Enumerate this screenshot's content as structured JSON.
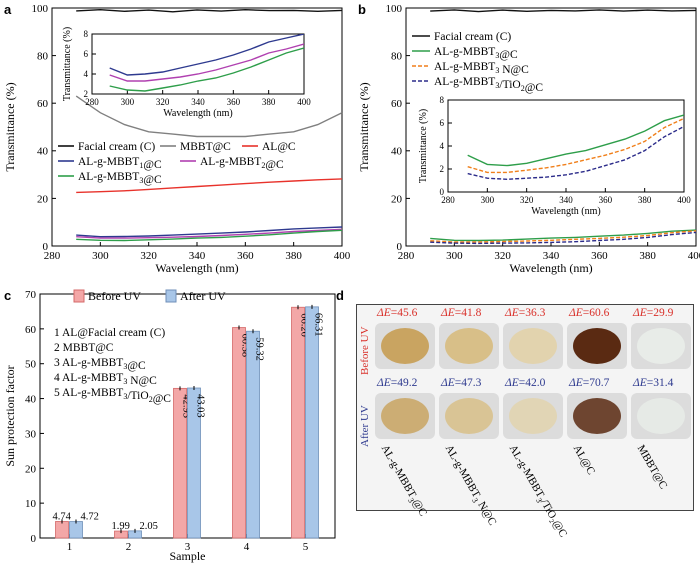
{
  "colors": {
    "black": "#111111",
    "grey": "#808080",
    "red": "#e8322b",
    "blue": "#2e3a8f",
    "purple": "#b040b0",
    "green": "#2e9e4a",
    "orange": "#f07f1a",
    "navy": "#2b2b8a",
    "bar_before": "#f3a7a7",
    "bar_after": "#a8c6e8",
    "de_before": "#d9302a",
    "de_after": "#2e3a8f"
  },
  "chart_data": [
    {
      "panel": "a",
      "type": "line",
      "xlabel": "Wavelength (nm)",
      "ylabel": "Transmittance (%)",
      "xlim": [
        280,
        400
      ],
      "ylim": [
        0,
        100
      ],
      "xticks": [
        "280",
        "300",
        "320",
        "340",
        "360",
        "380",
        "400"
      ],
      "yticks": [
        "0",
        "20",
        "40",
        "60",
        "80",
        "100"
      ],
      "legend": [
        "Facial cream (C)",
        "MBBT@C",
        "AL@C",
        "AL-g-MBBT1@C",
        "AL-g-MBBT2@C",
        "AL-g-MBBT3@C"
      ],
      "series": [
        {
          "name": "Facial cream (C)",
          "color": "black",
          "x": [
            290,
            300,
            310,
            320,
            330,
            340,
            350,
            360,
            370,
            380,
            390,
            400
          ],
          "y": [
            98.8,
            99.3,
            98.6,
            99.1,
            98.4,
            99.2,
            98.7,
            99.3,
            98.9,
            99.0,
            98.6,
            99.0
          ]
        },
        {
          "name": "MBBT@C",
          "color": "grey",
          "x": [
            290,
            300,
            310,
            320,
            330,
            340,
            350,
            360,
            370,
            380,
            390,
            400
          ],
          "y": [
            63,
            56,
            51,
            48,
            47,
            46,
            46,
            46,
            47,
            48,
            51,
            56
          ]
        },
        {
          "name": "AL@C",
          "color": "red",
          "x": [
            290,
            300,
            310,
            320,
            330,
            340,
            350,
            360,
            370,
            380,
            390,
            400
          ],
          "y": [
            22.5,
            22.8,
            23.2,
            23.8,
            24.4,
            25.0,
            25.6,
            26.2,
            26.8,
            27.3,
            27.8,
            28.2
          ]
        },
        {
          "name": "AL-g-MBBT1@C",
          "color": "blue",
          "x": [
            290,
            300,
            310,
            320,
            330,
            340,
            350,
            360,
            370,
            380,
            390,
            400
          ],
          "y": [
            4.6,
            3.9,
            4.0,
            4.2,
            4.6,
            5.0,
            5.4,
            5.9,
            6.5,
            7.2,
            7.6,
            8.0
          ]
        },
        {
          "name": "AL-g-MBBT2@C",
          "color": "purple",
          "x": [
            290,
            300,
            310,
            320,
            330,
            340,
            350,
            360,
            370,
            380,
            390,
            400
          ],
          "y": [
            3.9,
            3.3,
            3.3,
            3.5,
            3.7,
            4.0,
            4.4,
            4.9,
            5.4,
            6.1,
            6.5,
            7.0
          ]
        },
        {
          "name": "AL-g-MBBT3@C",
          "color": "green",
          "x": [
            290,
            300,
            310,
            320,
            330,
            340,
            350,
            360,
            370,
            380,
            390,
            400
          ],
          "y": [
            2.8,
            2.4,
            2.3,
            2.6,
            2.9,
            3.3,
            3.6,
            4.1,
            4.7,
            5.4,
            6.1,
            6.6
          ]
        }
      ],
      "inset": {
        "xlabel": "Wavelength (nm)",
        "ylabel": "Transmittance (%)",
        "xlim": [
          280,
          400
        ],
        "ylim": [
          2,
          8
        ],
        "xticks": [
          "280",
          "300",
          "320",
          "340",
          "360",
          "380",
          "400"
        ],
        "yticks": [
          "2",
          "4",
          "6",
          "8"
        ],
        "series_from_main": [
          3,
          4,
          5
        ]
      }
    },
    {
      "panel": "b",
      "type": "line",
      "xlabel": "Wavelength (nm)",
      "ylabel": "Transmittance (%)",
      "xlim": [
        280,
        400
      ],
      "ylim": [
        0,
        100
      ],
      "xticks": [
        "280",
        "300",
        "320",
        "340",
        "360",
        "380",
        "400"
      ],
      "yticks": [
        "0",
        "20",
        "40",
        "60",
        "80",
        "100"
      ],
      "legend": [
        "Facial cream (C)",
        "AL-g-MBBT3@C",
        "AL-g-MBBT3 N@C",
        "AL-g-MBBT3/TiO2@C"
      ],
      "series": [
        {
          "name": "Facial cream (C)",
          "color": "black",
          "dash": false,
          "x": [
            290,
            300,
            310,
            320,
            330,
            340,
            350,
            360,
            370,
            380,
            390,
            400
          ],
          "y": [
            98.7,
            99.2,
            98.5,
            99.1,
            98.6,
            99.0,
            98.8,
            99.2,
            98.7,
            99.1,
            98.8,
            99.0
          ]
        },
        {
          "name": "AL-g-MBBT3@C",
          "color": "green",
          "dash": false,
          "x": [
            290,
            300,
            310,
            320,
            330,
            340,
            350,
            360,
            370,
            380,
            390,
            400
          ],
          "y": [
            3.2,
            2.4,
            2.3,
            2.5,
            2.9,
            3.3,
            3.6,
            4.1,
            4.6,
            5.3,
            6.2,
            6.7
          ]
        },
        {
          "name": "AL-g-MBBT3 N@C",
          "color": "orange",
          "dash": true,
          "x": [
            290,
            300,
            310,
            320,
            330,
            340,
            350,
            360,
            370,
            380,
            390,
            400
          ],
          "y": [
            2.2,
            1.7,
            1.7,
            1.9,
            2.1,
            2.4,
            2.8,
            3.2,
            3.7,
            4.4,
            5.6,
            6.4
          ]
        },
        {
          "name": "AL-g-MBBT3/TiO2@C",
          "color": "navy",
          "dash": true,
          "x": [
            290,
            300,
            310,
            320,
            330,
            340,
            350,
            360,
            370,
            380,
            390,
            400
          ],
          "y": [
            1.6,
            1.2,
            1.1,
            1.2,
            1.3,
            1.5,
            1.8,
            2.3,
            2.8,
            3.6,
            4.8,
            5.7
          ]
        }
      ],
      "inset": {
        "xlabel": "Wavelength (nm)",
        "ylabel": "Transmittance (%)",
        "xlim": [
          280,
          400
        ],
        "ylim": [
          0,
          8
        ],
        "xticks": [
          "280",
          "300",
          "320",
          "340",
          "360",
          "380",
          "400"
        ],
        "yticks": [
          "0",
          "2",
          "4",
          "6",
          "8"
        ],
        "series_from_main": [
          1,
          2,
          3
        ]
      }
    },
    {
      "panel": "c",
      "type": "bar",
      "xlabel": "Sample",
      "ylabel": "Sun protection factor",
      "ylim": [
        0,
        70
      ],
      "yticks": [
        "0",
        "10",
        "20",
        "30",
        "40",
        "50",
        "60",
        "70"
      ],
      "categories": [
        "1",
        "2",
        "3",
        "4",
        "5"
      ],
      "series": [
        {
          "name": "Before UV",
          "color": "bar_before",
          "values": [
            4.74,
            1.99,
            42.93,
            60.38,
            66.2
          ],
          "labels": [
            "4.74",
            "1.99",
            "42.93",
            "60.38",
            "66.20"
          ]
        },
        {
          "name": "After UV",
          "color": "bar_after",
          "values": [
            4.72,
            2.05,
            43.03,
            59.32,
            66.31
          ],
          "labels": [
            "4.72",
            "2.05",
            "43.03",
            "59.32",
            "66.31"
          ]
        }
      ],
      "sample_key": [
        "1  AL@Facial cream (C)",
        "2  MBBT@C",
        "3  AL-g-MBBT3@C",
        "4  AL-g-MBBT3 N@C",
        "5  AL-g-MBBT3/TiO2@C"
      ]
    }
  ],
  "panel_labels": {
    "a": "a",
    "b": "b",
    "c": "c",
    "d": "d"
  },
  "panel_d": {
    "row_before": "Before UV",
    "row_after": "After UV",
    "delta_symbol": "ΔE",
    "before_values": [
      "=45.6",
      "=41.8",
      "=36.3",
      "=60.6",
      "=29.9"
    ],
    "after_values": [
      "=49.2",
      "=47.3",
      "=42.0",
      "=70.7",
      "=31.4"
    ],
    "samples": [
      "AL-g-MBBT3@C",
      "AL-g-MBBT3 N@C",
      "AL-g-MBBT3/TiO2@C",
      "AL@C",
      "MBBT@C"
    ],
    "swatch_colors": [
      "#c9a461",
      "#d8bf88",
      "#e2d3ae",
      "#5a2a12",
      "#e8ece8"
    ]
  }
}
